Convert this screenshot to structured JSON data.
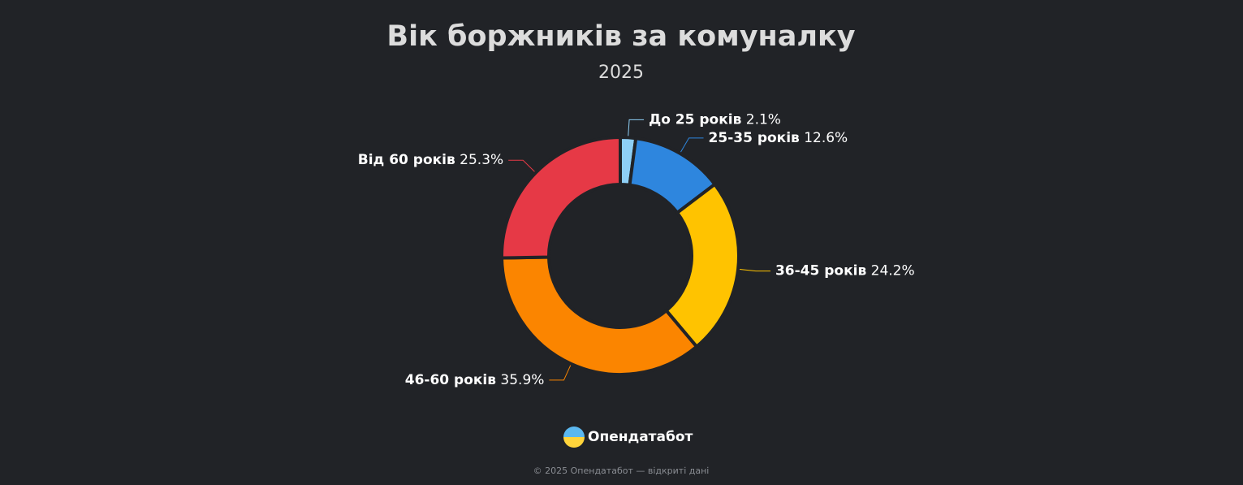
{
  "chart_data": {
    "type": "donut",
    "title": "Вік боржників за комуналку",
    "subtitle": "2025",
    "categories": [
      "До 25 років",
      "25-35 років",
      "36-45 років",
      "46-60 років",
      "Від 60 років"
    ],
    "values": [
      2.1,
      12.6,
      24.2,
      35.9,
      25.3
    ],
    "value_labels": [
      "2.1%",
      "12.6%",
      "24.2%",
      "35.9%",
      "25.3%"
    ],
    "colors": [
      "#8ecff5",
      "#2e86de",
      "#ffc300",
      "#fb8500",
      "#e63946"
    ]
  },
  "footer": {
    "brand": "Опендатабот",
    "copyright": "© 2025 Опендатабот — відкриті дані"
  }
}
